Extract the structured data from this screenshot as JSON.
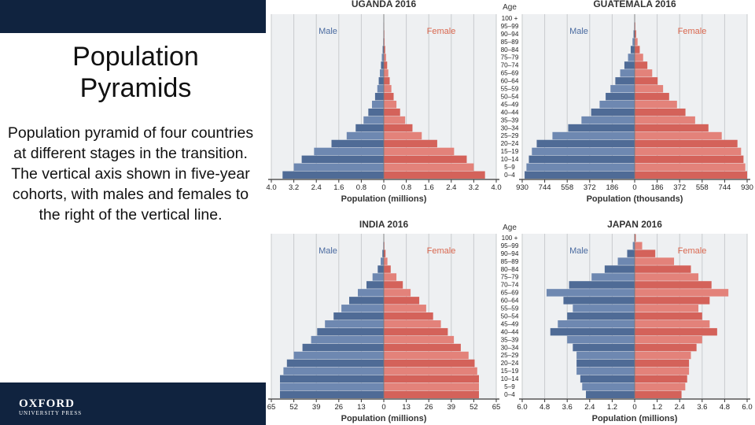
{
  "slide": {
    "title_line1": "Population",
    "title_line2": "Pyramids",
    "description": "Population pyramid of four countries at different stages in the transition. The vertical axis shown in five-year cohorts, with males and females to the right of the vertical line.",
    "logo_main": "OXFORD",
    "logo_sub": "UNIVERSITY PRESS"
  },
  "colors": {
    "navy": "#10233f",
    "male_label": "#4a6aa0",
    "female_label": "#d9674f",
    "male_bar_dark": "#4f6b96",
    "male_bar_light": "#6e88b1",
    "female_bar_dark": "#d4625a",
    "female_bar_light": "#e3827a",
    "panel_bg": "#eef0f2",
    "grid": "#c8cbce"
  },
  "age_label_header": "Age",
  "age_groups": [
    "100 +",
    "95–99",
    "90–94",
    "85–89",
    "80–84",
    "75–79",
    "70–74",
    "65–69",
    "60–64",
    "55–59",
    "50–54",
    "45–49",
    "40–44",
    "35–39",
    "30–34",
    "25–29",
    "20–24",
    "15–19",
    "10–14",
    "5–9",
    "0–4"
  ],
  "legend": {
    "male": "Male",
    "female": "Female"
  },
  "chart_data": [
    {
      "type": "bar",
      "title": "UGANDA 2016",
      "xlabel": "Population (millions)",
      "xticks": [
        "4.0",
        "3.2",
        "2.4",
        "1.6",
        "0.8",
        "0",
        "0.8",
        "1.6",
        "2.4",
        "3.2",
        "4.0"
      ],
      "xlim": [
        -4.0,
        4.0
      ],
      "categories": [
        "100 +",
        "95–99",
        "90–94",
        "85–89",
        "80–84",
        "75–79",
        "70–74",
        "65–69",
        "60–64",
        "55–59",
        "50–54",
        "45–49",
        "40–44",
        "35–39",
        "30–34",
        "25–29",
        "20–24",
        "15–19",
        "10–14",
        "5–9",
        "0–4"
      ],
      "series": [
        {
          "name": "Male",
          "values": [
            0.0,
            0.01,
            0.01,
            0.02,
            0.04,
            0.07,
            0.1,
            0.14,
            0.18,
            0.23,
            0.31,
            0.42,
            0.55,
            0.72,
            1.0,
            1.32,
            1.86,
            2.48,
            2.92,
            3.2,
            3.6
          ]
        },
        {
          "name": "Female",
          "values": [
            0.0,
            0.01,
            0.02,
            0.03,
            0.05,
            0.08,
            0.12,
            0.16,
            0.21,
            0.27,
            0.35,
            0.45,
            0.58,
            0.76,
            1.02,
            1.35,
            1.9,
            2.5,
            2.95,
            3.2,
            3.6
          ]
        }
      ]
    },
    {
      "type": "bar",
      "title": "GUATEMALA 2016",
      "xlabel": "Population (thousands)",
      "xticks": [
        "930",
        "744",
        "558",
        "372",
        "186",
        "0",
        "186",
        "372",
        "558",
        "744",
        "930"
      ],
      "xlim": [
        -930,
        930
      ],
      "categories": [
        "100 +",
        "95–99",
        "90–94",
        "85–89",
        "80–84",
        "75–79",
        "70–74",
        "65–69",
        "60–64",
        "55–59",
        "50–54",
        "45–49",
        "40–44",
        "35–39",
        "30–34",
        "25–29",
        "20–24",
        "15–19",
        "10–14",
        "5–9",
        "0–4"
      ],
      "series": [
        {
          "name": "Male",
          "values": [
            0,
            4,
            9,
            18,
            33,
            55,
            85,
            120,
            160,
            200,
            240,
            290,
            360,
            440,
            550,
            680,
            810,
            850,
            875,
            895,
            910
          ]
        },
        {
          "name": "Female",
          "values": [
            0,
            6,
            12,
            24,
            42,
            70,
            105,
            145,
            190,
            235,
            285,
            350,
            420,
            500,
            610,
            720,
            850,
            880,
            900,
            915,
            930
          ]
        }
      ]
    },
    {
      "type": "bar",
      "title": "INDIA 2016",
      "xlabel": "Population (millions)",
      "xticks": [
        "65",
        "52",
        "39",
        "26",
        "13",
        "0",
        "13",
        "26",
        "39",
        "52",
        "65"
      ],
      "xlim": [
        -65,
        65
      ],
      "categories": [
        "100 +",
        "95–99",
        "90–94",
        "85–89",
        "80–84",
        "75–79",
        "70–74",
        "65–69",
        "60–64",
        "55–59",
        "50–54",
        "45–49",
        "40–44",
        "35–39",
        "30–34",
        "25–29",
        "20–24",
        "15–19",
        "10–14",
        "5–9",
        "0–4"
      ],
      "series": [
        {
          "name": "Male",
          "values": [
            0,
            0.3,
            0.8,
            1.8,
            3.5,
            6.5,
            10,
            15,
            20,
            24.5,
            29,
            34,
            38.5,
            42,
            47,
            52,
            56,
            58,
            60,
            60,
            60
          ]
        },
        {
          "name": "Female",
          "values": [
            0,
            0.4,
            1.0,
            2.1,
            4.0,
            7.3,
            11,
            15.5,
            20.5,
            24.5,
            28.5,
            33,
            37,
            40.5,
            44.5,
            49,
            52.5,
            54,
            55,
            55,
            55
          ]
        }
      ]
    },
    {
      "type": "bar",
      "title": "JAPAN 2016",
      "xlabel": "Population (millions)",
      "xticks": [
        "6.0",
        "4.8",
        "3.6",
        "2.4",
        "1.2",
        "0",
        "1.2",
        "2.4",
        "3.6",
        "4.8",
        "6.0"
      ],
      "xlim": [
        -6.0,
        6.0
      ],
      "categories": [
        "100 +",
        "95–99",
        "90–94",
        "85–89",
        "80–84",
        "75–79",
        "70–74",
        "65–69",
        "60–64",
        "55–59",
        "50–54",
        "45–49",
        "40–44",
        "35–39",
        "30–34",
        "25–29",
        "20–24",
        "15–19",
        "10–14",
        "5–9",
        "0–4"
      ],
      "series": [
        {
          "name": "Male",
          "values": [
            0.01,
            0.1,
            0.4,
            0.9,
            1.6,
            2.3,
            3.5,
            4.7,
            3.8,
            3.3,
            3.6,
            4.1,
            4.5,
            3.6,
            3.3,
            3.1,
            3.1,
            3.1,
            2.9,
            2.8,
            2.6
          ]
        },
        {
          "name": "Female",
          "values": [
            0.06,
            0.4,
            1.1,
            2.1,
            3.0,
            3.4,
            4.1,
            5.0,
            4.0,
            3.4,
            3.6,
            4.0,
            4.4,
            3.6,
            3.3,
            3.0,
            2.9,
            2.9,
            2.8,
            2.7,
            2.5
          ]
        }
      ]
    }
  ]
}
